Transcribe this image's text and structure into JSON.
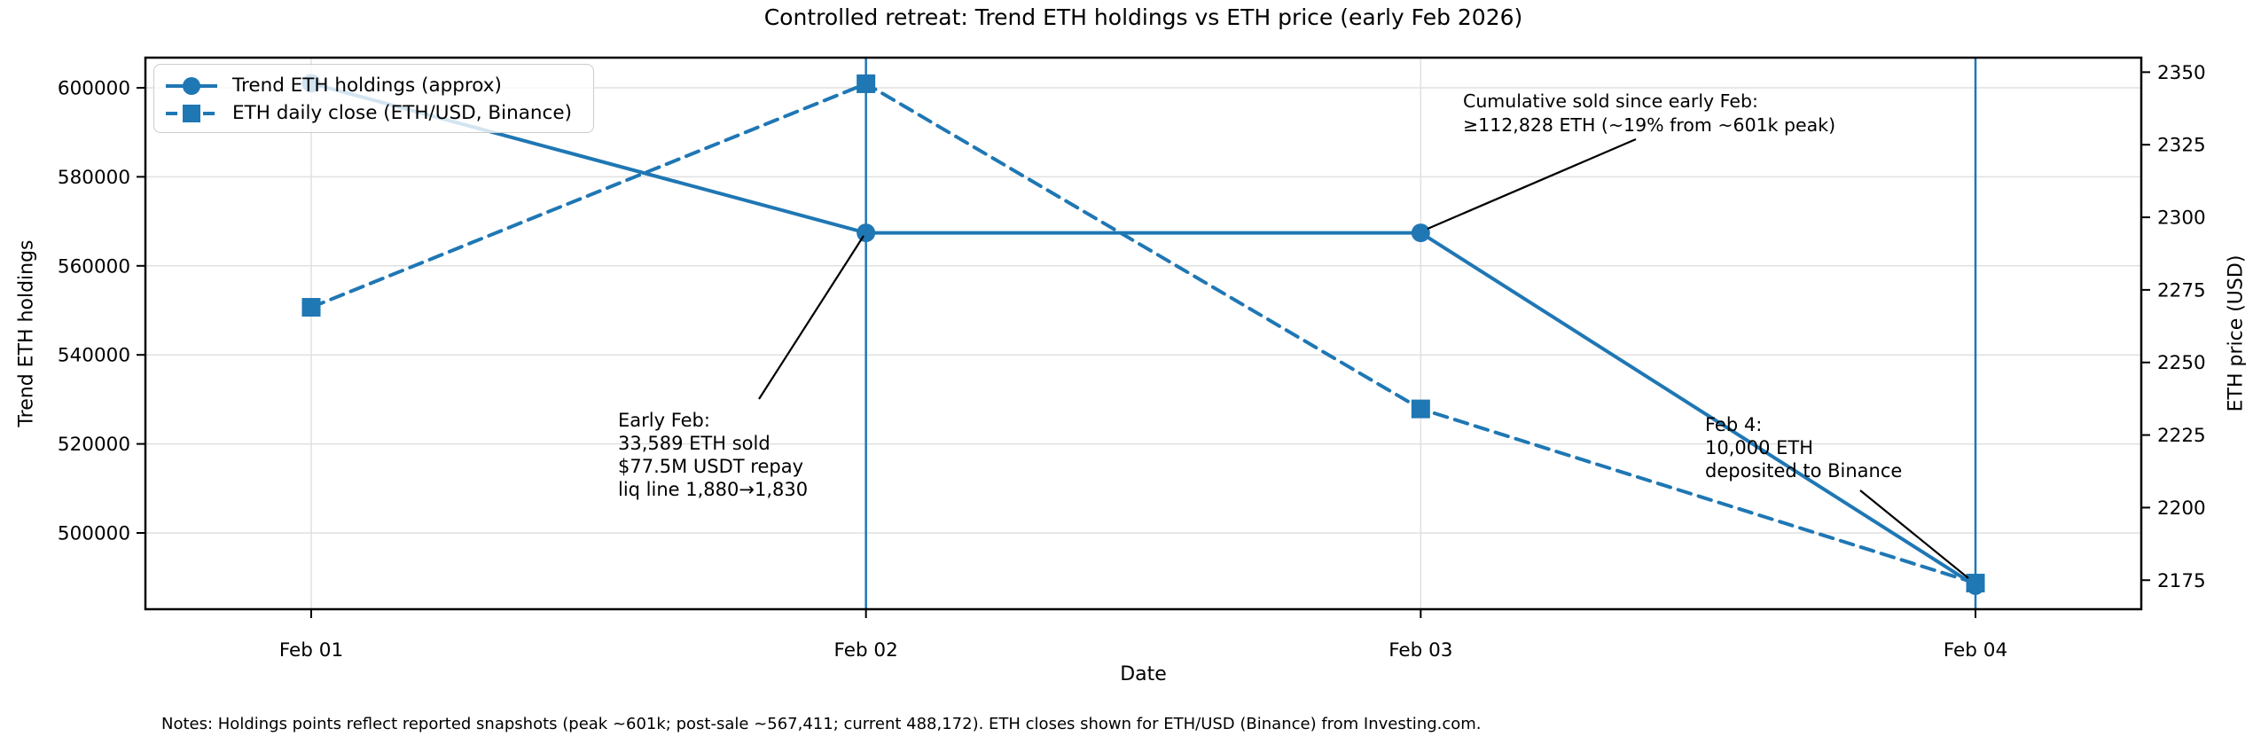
{
  "footer_note": "Notes: Holdings points reflect reported snapshots (peak ~601k; post-sale ~567,411; current 488,172). ETH closes shown for ETH/USD (Binance) from Investing.com.",
  "chart_data": {
    "type": "line",
    "title": "Controlled retreat: Trend ETH holdings vs ETH price (early Feb 2026)",
    "xlabel": "Date",
    "x_tick_labels": [
      "Feb 01",
      "Feb 02",
      "Feb 03",
      "Feb 04"
    ],
    "grid": true,
    "legend_position": "upper left",
    "left_axis": {
      "label": "Trend ETH holdings",
      "ticks": [
        500000,
        520000,
        540000,
        560000,
        580000,
        600000
      ],
      "range": [
        482870,
        606770
      ]
    },
    "right_axis": {
      "label": "ETH price (USD)",
      "ticks": [
        2175,
        2200,
        2225,
        2250,
        2275,
        2300,
        2325,
        2350
      ],
      "range": [
        2165,
        2355
      ]
    },
    "series": [
      {
        "name": "Trend ETH holdings (approx)",
        "axis": "left",
        "line_style": "solid",
        "marker": "circle",
        "color": "#1f77b4",
        "x": [
          "Feb 01",
          "Feb 02",
          "Feb 03",
          "Feb 04"
        ],
        "values": [
          601000,
          567411,
          567411,
          488172
        ]
      },
      {
        "name": "ETH daily close (ETH/USD, Binance)",
        "axis": "right",
        "line_style": "dashed",
        "marker": "square",
        "color": "#1f77b4",
        "x": [
          "Feb 01",
          "Feb 02",
          "Feb 03",
          "Feb 04"
        ],
        "values": [
          2269,
          2346,
          2234,
          2174
        ]
      }
    ],
    "vlines": [
      {
        "x": "Feb 02",
        "color": "#1f77b4"
      },
      {
        "x": "Feb 04",
        "color": "#1f77b4"
      }
    ],
    "annotations": [
      {
        "id": "cumulative-sold",
        "lines": [
          "Cumulative sold since early Feb:",
          "≥112,828 ETH (~19% from ~601k peak)"
        ]
      },
      {
        "id": "early-feb",
        "lines": [
          "Early Feb:",
          "33,589 ETH sold",
          "$77.5M USDT repay",
          "liq line 1,880→1,830"
        ]
      },
      {
        "id": "feb4-deposit",
        "lines": [
          "Feb 4:",
          "10,000 ETH",
          "deposited to Binance"
        ]
      }
    ],
    "legend": {
      "entries": [
        {
          "label": "Trend ETH holdings (approx)",
          "marker": "circle",
          "line": "solid"
        },
        {
          "label": "ETH daily close (ETH/USD, Binance)",
          "marker": "square",
          "line": "dashed"
        }
      ]
    },
    "colors": {
      "series_blue": "#1f77b4",
      "grid": "#e0e0e0",
      "spine": "#000000",
      "annotation_line": "#000000",
      "background": "#ffffff"
    }
  }
}
